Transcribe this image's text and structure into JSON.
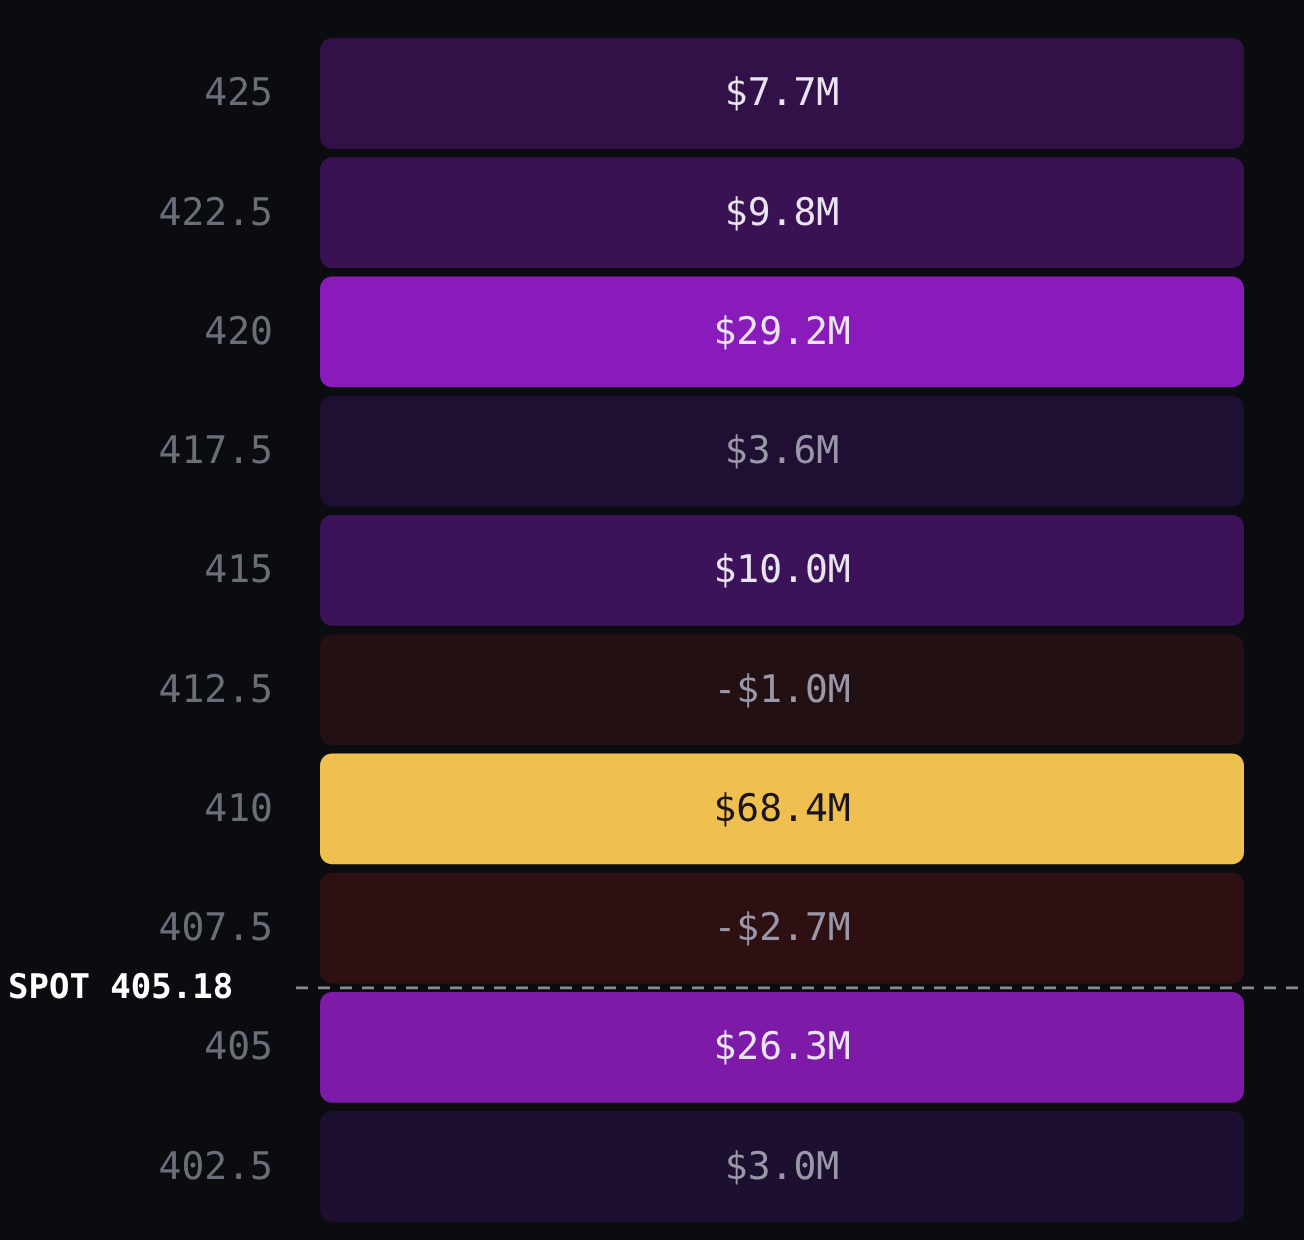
{
  "chart_data": {
    "type": "heatmap",
    "categories": [
      null
    ],
    "y_categories": [
      "425",
      "422.5",
      "420",
      "417.5",
      "415",
      "412.5",
      "410",
      "407.5",
      "405",
      "402.5"
    ],
    "cells": [
      [
        7.7
      ],
      [
        9.8
      ],
      [
        29.2
      ],
      [
        3.6
      ],
      [
        10.0
      ],
      [
        -1.0
      ],
      [
        68.4
      ],
      [
        -2.7
      ],
      [
        26.3
      ],
      [
        3.0
      ]
    ],
    "cell_labels": [
      [
        "$7.7M"
      ],
      [
        "$9.8M"
      ],
      [
        "$29.2M"
      ],
      [
        "$3.6M"
      ],
      [
        "$10.0M"
      ],
      [
        "-$1.0M"
      ],
      [
        "$68.4M"
      ],
      [
        "-$2.7M"
      ],
      [
        "$26.3M"
      ],
      [
        "$3.0M"
      ]
    ],
    "colors": [
      "#321048",
      "#3a1152",
      "#8a1bbb",
      "#1f0f33",
      "#3c1259",
      "#221013",
      "#efc04f",
      "#2e1013",
      "#7e1aa8",
      "#1d0f30"
    ],
    "annotations": [
      "SPOT 405.18"
    ]
  }
}
